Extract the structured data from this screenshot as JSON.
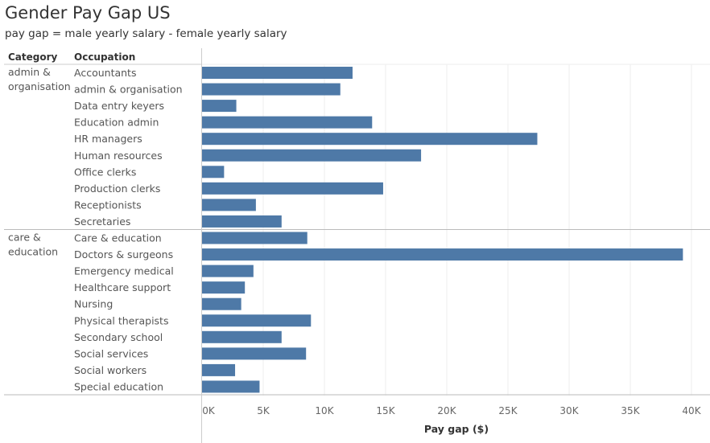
{
  "header": {
    "title": "Gender Pay Gap US",
    "subtitle": "pay gap = male yearly salary - female yearly salary",
    "col_category": "Category",
    "col_occupation": "Occupation"
  },
  "chart_data": {
    "type": "bar",
    "orientation": "horizontal",
    "xlabel": "Pay gap ($)",
    "xlim": [
      0,
      40000
    ],
    "xticks": [
      0,
      5000,
      10000,
      15000,
      20000,
      25000,
      30000,
      35000,
      40000
    ],
    "xtick_labels": [
      "0K",
      "5K",
      "10K",
      "15K",
      "20K",
      "25K",
      "30K",
      "35K",
      "40K"
    ],
    "grid": true,
    "bar_color": "#4e79a7",
    "groups": [
      {
        "category_lines": [
          "admin &",
          "organisation"
        ],
        "occupations": [
          "Accountants",
          "admin & organisation",
          "Data entry keyers",
          "Education admin",
          "HR managers",
          "Human resources",
          "Office clerks",
          "Production clerks",
          "Receptionists",
          "Secretaries"
        ],
        "values": [
          12300,
          11300,
          2800,
          13900,
          27400,
          17900,
          1800,
          14800,
          4400,
          6500
        ]
      },
      {
        "category_lines": [
          "care &",
          "education"
        ],
        "occupations": [
          "Care & education",
          "Doctors & surgeons",
          "Emergency medical",
          "Healthcare support",
          "Nursing",
          "Physical therapists",
          "Secondary school",
          "Social services",
          "Social workers",
          "Special education"
        ],
        "values": [
          8600,
          39300,
          4200,
          3500,
          3200,
          8900,
          6500,
          8500,
          2700,
          4700
        ]
      }
    ]
  }
}
